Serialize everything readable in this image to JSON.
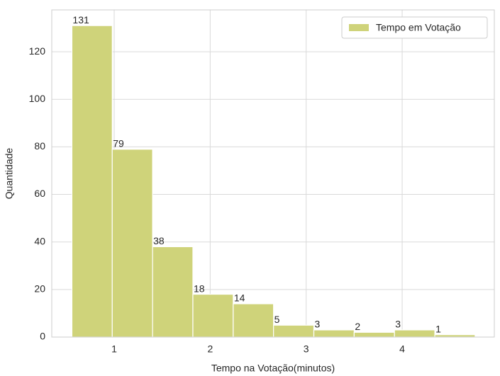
{
  "chart_data": {
    "type": "histogram",
    "xlabel": "Tempo na Votação(minutos)",
    "ylabel": "Quantidade",
    "bins": [
      0.56,
      0.98,
      1.4,
      1.82,
      2.24,
      2.66,
      3.08,
      3.5,
      3.92,
      4.34,
      4.76
    ],
    "series": [
      {
        "name": "Tempo em Votação",
        "color": "#cfd37a",
        "values": [
          131,
          79,
          38,
          18,
          14,
          5,
          3,
          2,
          3,
          1
        ]
      }
    ],
    "xlim": [
      0.35,
      4.96
    ],
    "xticks": [
      1,
      2,
      3,
      4
    ],
    "ylim": [
      0,
      137.6
    ],
    "yticks": [
      0,
      20,
      40,
      60,
      80,
      100,
      120
    ],
    "grid": true,
    "legend": "upper right"
  }
}
